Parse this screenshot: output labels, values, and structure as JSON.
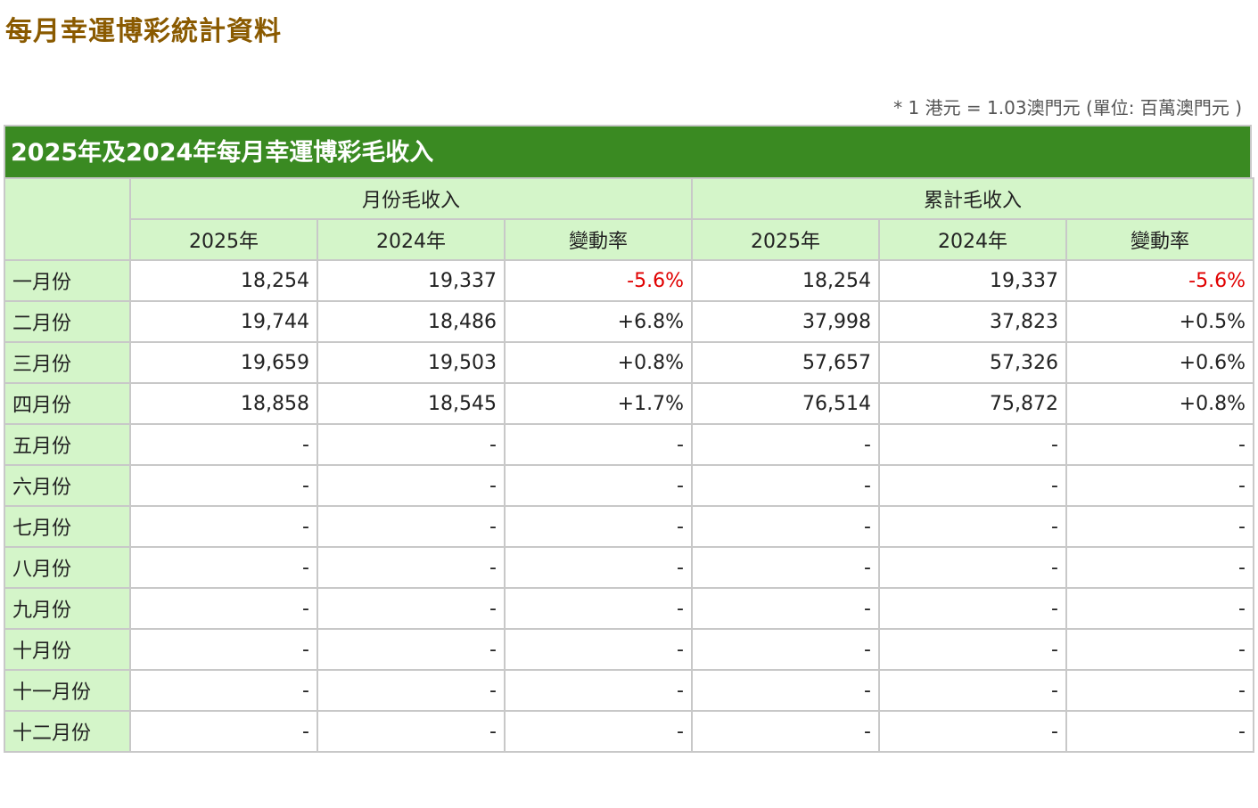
{
  "page": {
    "title": "每月幸運博彩統計資料",
    "note": "* 1 港元 = 1.03澳門元 (單位: 百萬澳門元 )"
  },
  "table": {
    "title": "2025年及2024年每月幸運博彩毛收入",
    "group_headers": [
      "月份毛收入",
      "累計毛收入"
    ],
    "sub_headers": [
      "2025年",
      "2024年",
      "變動率",
      "2025年",
      "2024年",
      "變動率"
    ],
    "rows": [
      {
        "month": "一月份",
        "cells": [
          "18,254",
          "19,337",
          "-5.6%",
          "18,254",
          "19,337",
          "-5.6%"
        ]
      },
      {
        "month": "二月份",
        "cells": [
          "19,744",
          "18,486",
          "+6.8%",
          "37,998",
          "37,823",
          "+0.5%"
        ]
      },
      {
        "month": "三月份",
        "cells": [
          "19,659",
          "19,503",
          "+0.8%",
          "57,657",
          "57,326",
          "+0.6%"
        ]
      },
      {
        "month": "四月份",
        "cells": [
          "18,858",
          "18,545",
          "+1.7%",
          "76,514",
          "75,872",
          "+0.8%"
        ]
      },
      {
        "month": "五月份",
        "cells": [
          "-",
          "-",
          "-",
          "-",
          "-",
          "-"
        ]
      },
      {
        "month": "六月份",
        "cells": [
          "-",
          "-",
          "-",
          "-",
          "-",
          "-"
        ]
      },
      {
        "month": "七月份",
        "cells": [
          "-",
          "-",
          "-",
          "-",
          "-",
          "-"
        ]
      },
      {
        "month": "八月份",
        "cells": [
          "-",
          "-",
          "-",
          "-",
          "-",
          "-"
        ]
      },
      {
        "month": "九月份",
        "cells": [
          "-",
          "-",
          "-",
          "-",
          "-",
          "-"
        ]
      },
      {
        "month": "十月份",
        "cells": [
          "-",
          "-",
          "-",
          "-",
          "-",
          "-"
        ]
      },
      {
        "month": "十一月份",
        "cells": [
          "-",
          "-",
          "-",
          "-",
          "-",
          "-"
        ]
      },
      {
        "month": "十二月份",
        "cells": [
          "-",
          "-",
          "-",
          "-",
          "-",
          "-"
        ]
      }
    ]
  },
  "colors": {
    "title_brown": "#8a5a00",
    "table_title_green": "#3a8a22",
    "header_light_green": "#d4f5c9",
    "negative_red": "#e00000"
  }
}
